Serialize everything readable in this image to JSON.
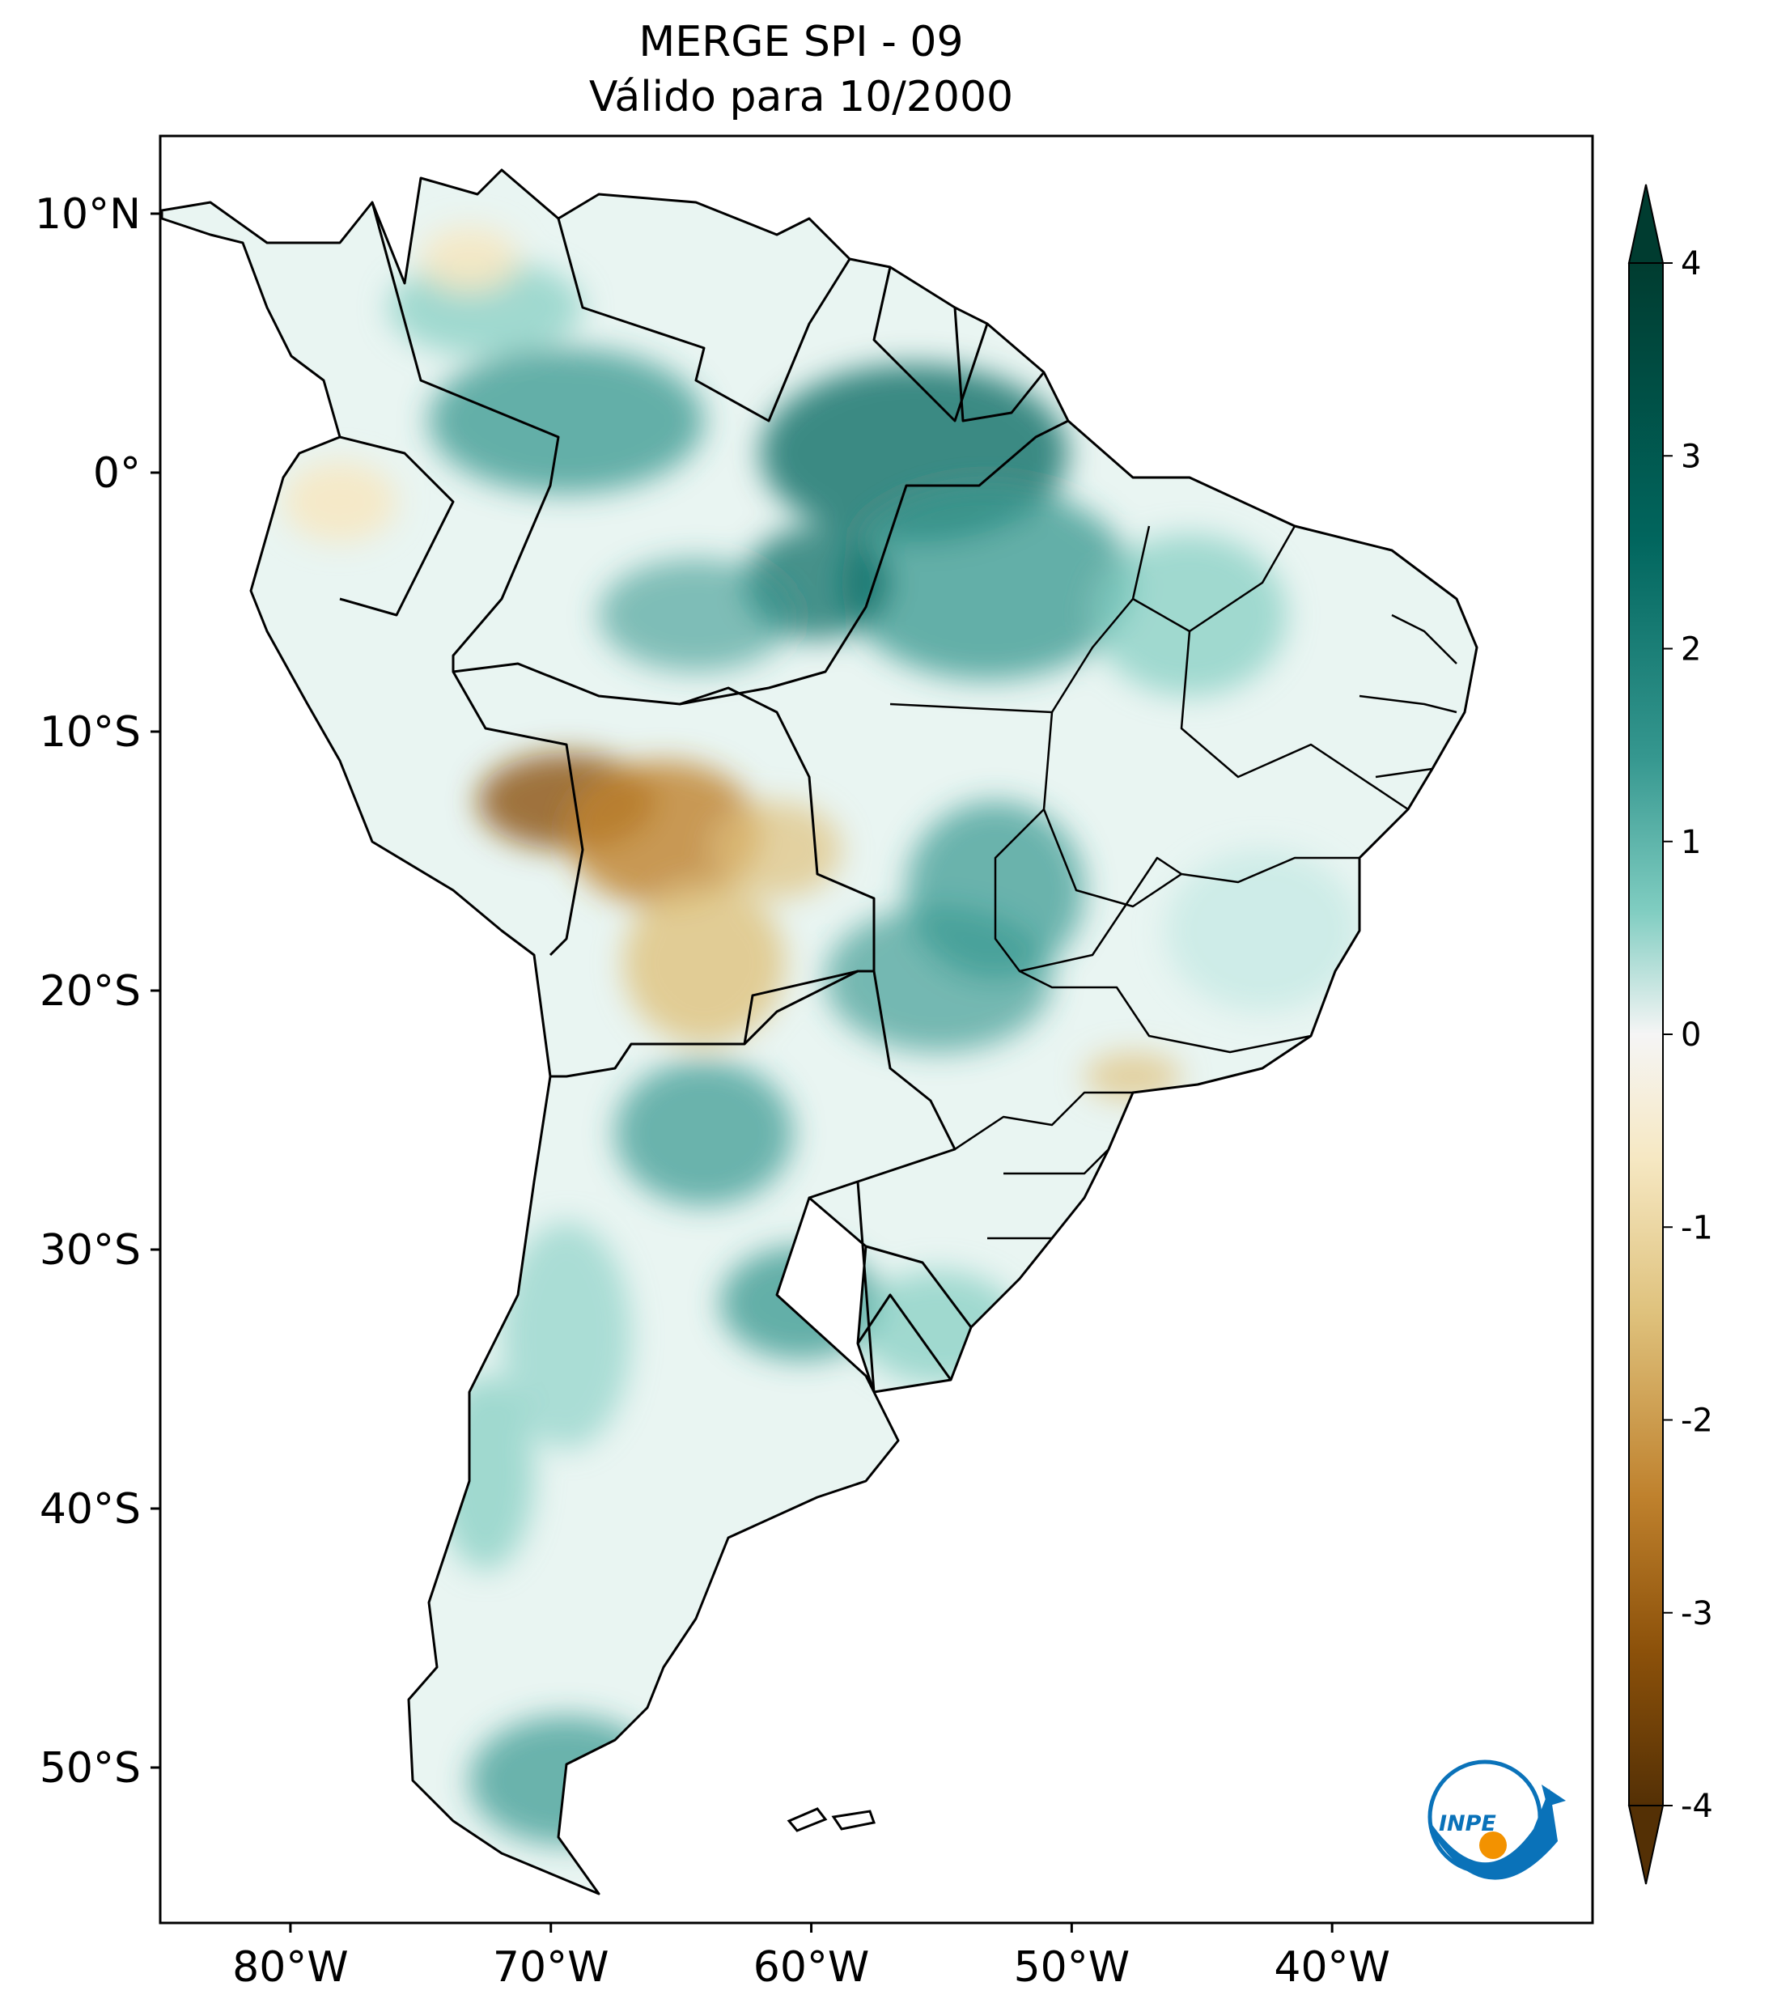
{
  "title": {
    "line1": "MERGE   SPI - 09",
    "line2": "Válido para 10/2000"
  },
  "map": {
    "region": "South America",
    "lon_range": [
      -85,
      -30
    ],
    "lat_range": [
      -56,
      13
    ],
    "lon_ticks": [
      {
        "value": -80,
        "label": "80°W"
      },
      {
        "value": -70,
        "label": "70°W"
      },
      {
        "value": -60,
        "label": "60°W"
      },
      {
        "value": -50,
        "label": "50°W"
      },
      {
        "value": -40,
        "label": "40°W"
      }
    ],
    "lat_ticks": [
      {
        "value": 10,
        "label": "10°N"
      },
      {
        "value": 0,
        "label": "0°"
      },
      {
        "value": -10,
        "label": "10°S"
      },
      {
        "value": -20,
        "label": "20°S"
      },
      {
        "value": -30,
        "label": "30°S"
      },
      {
        "value": -40,
        "label": "40°S"
      },
      {
        "value": -50,
        "label": "50°S"
      }
    ]
  },
  "colorbar": {
    "min": -4,
    "max": 4,
    "extend": "both",
    "ticks": [
      "4",
      "3",
      "2",
      "1",
      "0",
      "-1",
      "-2",
      "-3",
      "-4"
    ],
    "colors": {
      "wet_max": "#003c30",
      "wet_mid": "#35978f",
      "wet_low": "#c7eae5",
      "neutral": "#f5f5f5",
      "dry_low": "#f6e8c3",
      "dry_mid": "#bf812d",
      "dry_max": "#543005"
    }
  },
  "logo": {
    "text": "INPE",
    "colors": {
      "blue": "#0a72b9",
      "orange": "#f39200"
    }
  }
}
